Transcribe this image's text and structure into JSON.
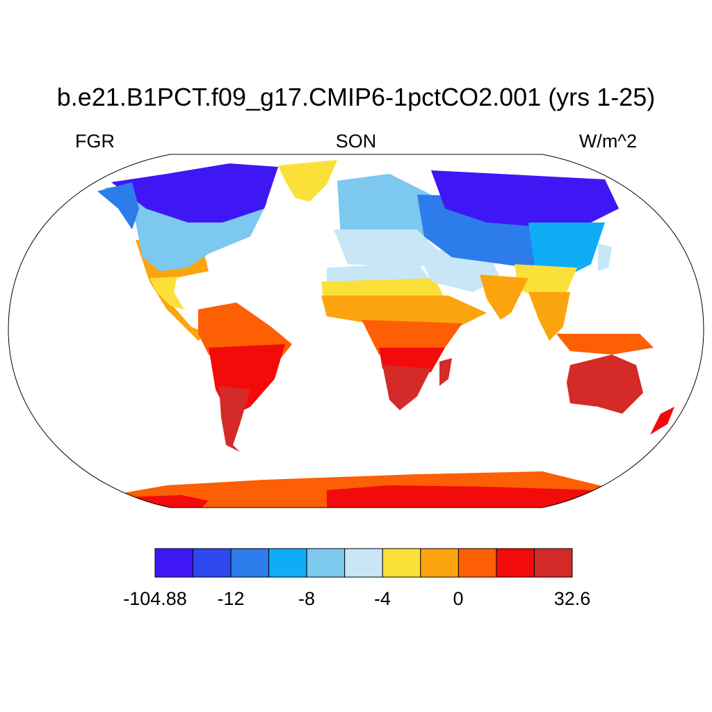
{
  "title": "b.e21.B1PCT.f09_g17.CMIP6-1pctCO2.001 (yrs 1-25)",
  "left_label": "FGR",
  "center_label": "SON",
  "right_label": "W/m^2",
  "colorbar": {
    "colors": [
      "#3f17f5",
      "#2e48ee",
      "#2d7ceb",
      "#0eadf6",
      "#7cc8ef",
      "#c8e6f6",
      "#fce03a",
      "#fba40e",
      "#fc5f04",
      "#f30a0a",
      "#d42a28"
    ],
    "tick_labels": [
      "-104.88",
      "-12",
      "-8",
      "-4",
      "0",
      "32.6"
    ]
  },
  "map": {
    "projection": "Robinson",
    "regions": [
      {
        "name": "Antarctica",
        "level": 9
      },
      {
        "name": "Australia",
        "level": 10
      },
      {
        "name": "South America interior",
        "level": 9
      },
      {
        "name": "Southern South America",
        "level": 10
      },
      {
        "name": "Southern Africa",
        "level": 10
      },
      {
        "name": "Central Africa",
        "level": 8
      },
      {
        "name": "Sahara",
        "level": 5
      },
      {
        "name": "India",
        "level": 7
      },
      {
        "name": "Siberia",
        "level": 0
      },
      {
        "name": "Northern Canada",
        "level": 0
      },
      {
        "name": "Greenland",
        "level": 6
      },
      {
        "name": "Europe",
        "level": 4
      }
    ]
  }
}
